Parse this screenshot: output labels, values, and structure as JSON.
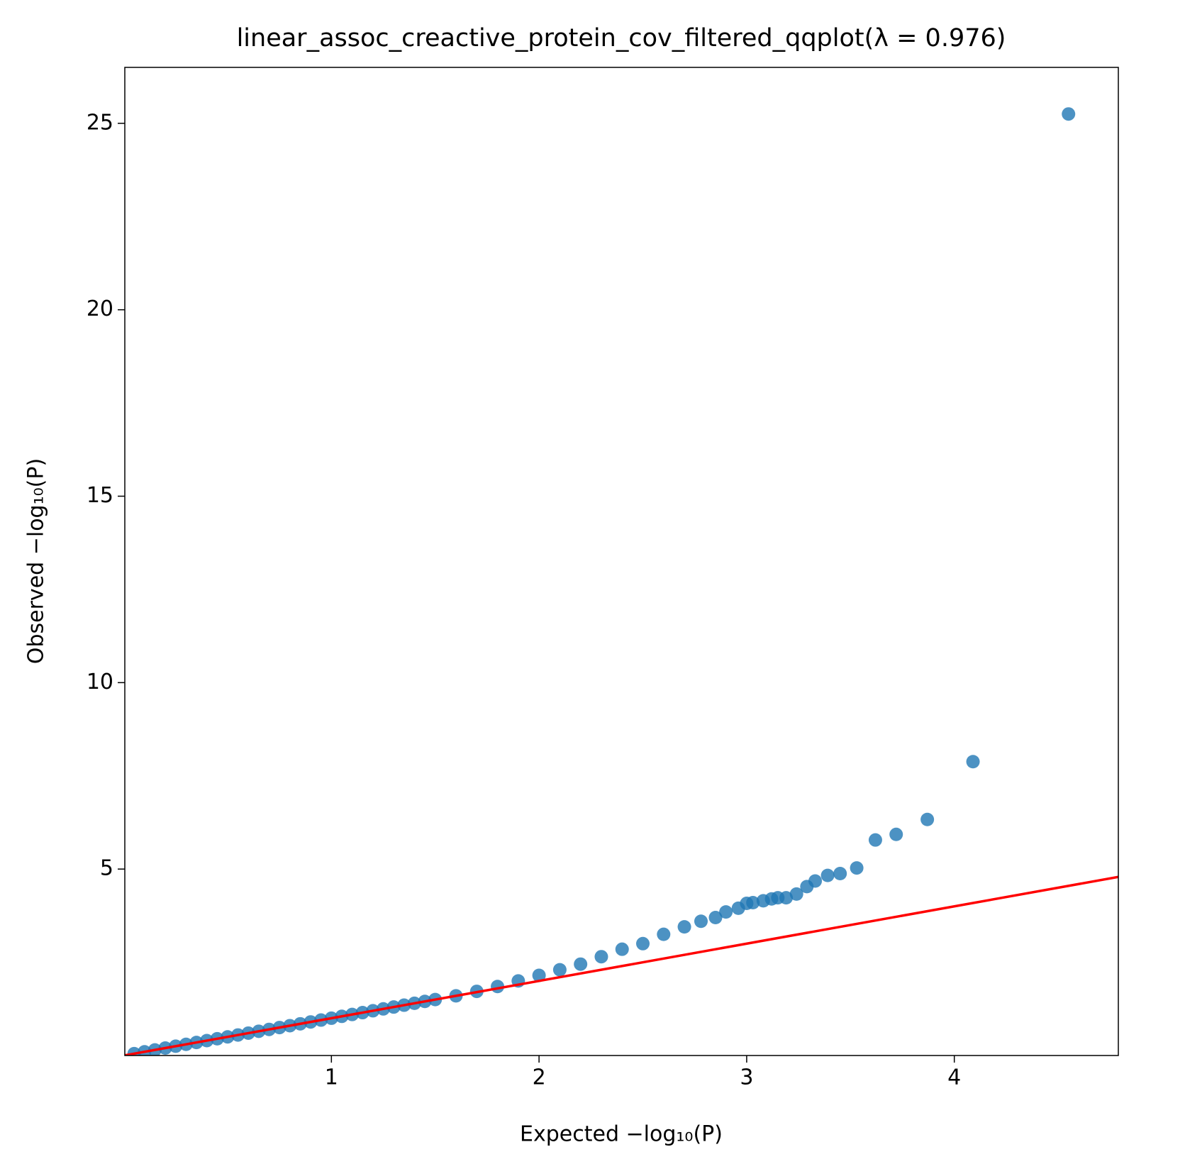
{
  "chart_data": {
    "type": "scatter",
    "title": "linear_assoc_creactive_protein_cov_filtered_qqplot(λ = 0.976)",
    "xlabel": "Expected −log₁₀(P)",
    "ylabel": "Observed −log₁₀(P)",
    "xlim": [
      0.005,
      4.79
    ],
    "ylim": [
      0,
      26.5
    ],
    "xticks": [
      1,
      2,
      3,
      4
    ],
    "yticks": [
      5,
      10,
      15,
      20,
      25
    ],
    "series": [
      {
        "color": "#1f77b4",
        "x": [
          0.05,
          0.1,
          0.15,
          0.2,
          0.25,
          0.3,
          0.35,
          0.4,
          0.45,
          0.5,
          0.55,
          0.6,
          0.65,
          0.7,
          0.75,
          0.8,
          0.85,
          0.9,
          0.95,
          1.0,
          1.05,
          1.1,
          1.15,
          1.2,
          1.25,
          1.3,
          1.35,
          1.4,
          1.45,
          1.5,
          1.6,
          1.7,
          1.8,
          1.9,
          2.0,
          2.1,
          2.2,
          2.3,
          2.4,
          2.5,
          2.6,
          2.7,
          2.78,
          2.85,
          2.9,
          2.96,
          3.0,
          3.03,
          3.08,
          3.12,
          3.15,
          3.19,
          3.24,
          3.29,
          3.33,
          3.39,
          3.45,
          3.53,
          3.62,
          3.72,
          3.87,
          4.09,
          4.55
        ],
        "values": [
          0.05,
          0.1,
          0.15,
          0.2,
          0.25,
          0.3,
          0.35,
          0.4,
          0.45,
          0.5,
          0.55,
          0.6,
          0.65,
          0.7,
          0.75,
          0.8,
          0.85,
          0.9,
          0.95,
          1.0,
          1.05,
          1.1,
          1.15,
          1.2,
          1.25,
          1.3,
          1.35,
          1.4,
          1.45,
          1.5,
          1.6,
          1.72,
          1.85,
          2.0,
          2.15,
          2.3,
          2.45,
          2.65,
          2.85,
          3.0,
          3.25,
          3.45,
          3.6,
          3.7,
          3.85,
          3.95,
          4.08,
          4.1,
          4.15,
          4.2,
          4.23,
          4.23,
          4.33,
          4.53,
          4.68,
          4.83,
          4.88,
          5.03,
          5.78,
          5.93,
          6.33,
          7.88,
          25.25
        ]
      }
    ],
    "lines": [
      {
        "color": "red",
        "x": [
          0.005,
          4.79
        ],
        "values": [
          0.005,
          4.79
        ]
      }
    ]
  }
}
